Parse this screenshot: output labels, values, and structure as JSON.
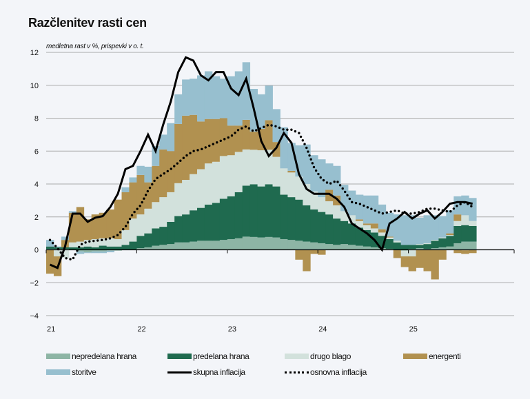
{
  "chart_data": {
    "type": "bar",
    "title": "Razčlenitev rasti cen",
    "subtitle": "medletna rast v %, prispevki v o. t.",
    "xlabel": "",
    "ylabel": "",
    "ylim": [
      -4,
      12
    ],
    "yticks": [
      -4,
      -2,
      0,
      2,
      4,
      6,
      8,
      10,
      12
    ],
    "yticklabels": [
      "−4",
      "−2",
      "0",
      "2",
      "4",
      "6",
      "8",
      "10",
      "12"
    ],
    "xticklabels": [
      "21",
      "22",
      "23",
      "24",
      "25"
    ],
    "grid": true,
    "legend_position": "bottom",
    "start": "2021-01",
    "months": 57,
    "series": [
      {
        "name": "nepredelana hrana",
        "kind": "bar",
        "color": "#8db5a5",
        "values": [
          0.05,
          0.05,
          0.05,
          0.0,
          -0.1,
          -0.15,
          -0.1,
          -0.1,
          -0.05,
          -0.05,
          0.0,
          0.0,
          0.1,
          0.15,
          0.25,
          0.3,
          0.35,
          0.45,
          0.45,
          0.5,
          0.55,
          0.55,
          0.55,
          0.6,
          0.65,
          0.7,
          0.8,
          0.78,
          0.75,
          0.78,
          0.75,
          0.65,
          0.6,
          0.55,
          0.5,
          0.45,
          0.4,
          0.35,
          0.3,
          0.35,
          0.3,
          0.25,
          0.2,
          0.15,
          0.1,
          0.05,
          0.0,
          -0.05,
          0.05,
          0.1,
          0.05,
          0.1,
          0.15,
          0.2,
          0.4,
          0.5,
          0.5
        ]
      },
      {
        "name": "predelana hrana",
        "kind": "bar",
        "color": "#1f6a4f",
        "values": [
          0.15,
          0.1,
          0.1,
          0.15,
          0.15,
          0.2,
          0.15,
          0.25,
          0.2,
          0.2,
          0.3,
          0.5,
          0.75,
          0.85,
          1.05,
          1.1,
          1.35,
          1.6,
          1.7,
          1.9,
          2.0,
          2.2,
          2.3,
          2.5,
          2.6,
          2.8,
          3.1,
          3.2,
          3.1,
          3.2,
          3.1,
          2.7,
          2.6,
          2.5,
          2.2,
          2.0,
          1.9,
          1.8,
          1.6,
          1.4,
          1.3,
          1.1,
          1.0,
          0.9,
          0.75,
          0.6,
          0.45,
          0.3,
          0.25,
          0.2,
          0.3,
          0.45,
          0.55,
          0.65,
          1.05,
          1.0,
          0.95
        ]
      },
      {
        "name": "drugo blago",
        "kind": "bar",
        "color": "#d2e1dc",
        "values": [
          0.0,
          -0.4,
          -0.5,
          0.3,
          0.35,
          0.4,
          0.5,
          0.45,
          0.5,
          0.45,
          0.9,
          1.4,
          1.3,
          1.5,
          1.6,
          1.8,
          1.8,
          2.0,
          2.1,
          2.2,
          2.35,
          2.5,
          2.5,
          2.6,
          2.5,
          2.45,
          2.2,
          2.1,
          2.2,
          2.1,
          1.8,
          1.6,
          1.5,
          1.4,
          1.3,
          1.1,
          0.9,
          0.8,
          0.8,
          0.6,
          0.5,
          0.4,
          0.3,
          0.25,
          0.2,
          0.1,
          0.1,
          -0.35,
          -0.4,
          0.05,
          0.05,
          0.05,
          0.05,
          0.05,
          0.3,
          0.6,
          0.3
        ]
      },
      {
        "name": "energenti",
        "kind": "bar",
        "color": "#b19150",
        "values": [
          -1.45,
          -1.2,
          0.45,
          1.8,
          2.1,
          1.25,
          1.5,
          1.55,
          1.75,
          2.4,
          2.3,
          2.2,
          2.4,
          1.6,
          2.2,
          2.9,
          2.5,
          3.6,
          3.9,
          3.6,
          2.9,
          2.7,
          2.6,
          2.3,
          1.8,
          1.6,
          1.8,
          1.1,
          1.3,
          1.8,
          0.9,
          0.0,
          0.1,
          -0.6,
          -1.3,
          -0.25,
          -0.3,
          0.7,
          0.6,
          0.0,
          0.0,
          0.1,
          0.1,
          0.3,
          0.2,
          0.05,
          -0.5,
          -0.65,
          -0.9,
          -1.1,
          -1.3,
          -1.8,
          -0.6,
          0.1,
          0.4,
          -0.05,
          0.0
        ]
      },
      {
        "name": "energenti (neg)",
        "kind": "bar-neg",
        "color": "#b19150",
        "values": [
          0,
          0,
          0,
          0,
          0,
          0,
          0,
          0,
          0,
          0,
          0,
          0,
          0,
          0,
          0,
          0,
          0,
          0,
          0,
          0,
          0,
          0,
          0,
          0,
          0,
          0,
          0,
          0,
          0,
          0,
          0,
          0,
          0,
          0,
          0,
          0,
          0,
          0,
          0,
          0,
          0,
          0,
          0,
          0,
          0,
          0,
          0,
          0,
          0,
          0,
          0,
          0,
          0,
          0,
          -0.2,
          -0.2,
          -0.2
        ]
      },
      {
        "name": "storitve",
        "kind": "bar",
        "color": "#97bfcf",
        "values": [
          0.4,
          0.05,
          0.2,
          0.1,
          -0.15,
          -0.05,
          -0.1,
          -0.1,
          -0.1,
          0.0,
          0.3,
          0.3,
          0.55,
          0.95,
          1.2,
          0.9,
          1.7,
          1.8,
          2.2,
          2.2,
          2.8,
          2.9,
          2.6,
          2.4,
          3.0,
          3.3,
          3.5,
          2.6,
          2.1,
          2.1,
          2.0,
          2.5,
          1.7,
          1.9,
          2.4,
          2.2,
          2.3,
          1.6,
          1.8,
          1.6,
          1.5,
          1.5,
          1.7,
          1.7,
          1.5,
          1.45,
          1.6,
          1.8,
          1.8,
          1.6,
          1.7,
          1.5,
          1.3,
          1.4,
          1.1,
          1.2,
          1.4
        ]
      },
      {
        "name": "skupna inflacija",
        "kind": "line",
        "color": "#000000",
        "values": [
          -0.9,
          -1.1,
          0.2,
          2.2,
          2.2,
          1.7,
          1.95,
          2.05,
          2.6,
          3.4,
          4.9,
          5.1,
          6.0,
          7.0,
          6.0,
          7.6,
          9.0,
          10.8,
          11.7,
          11.5,
          10.6,
          10.3,
          10.8,
          10.8,
          9.8,
          9.4,
          10.4,
          8.6,
          6.6,
          5.7,
          6.2,
          7.1,
          6.5,
          4.6,
          3.7,
          3.4,
          3.4,
          3.4,
          3.1,
          2.6,
          1.6,
          1.3,
          1.0,
          0.6,
          0.0,
          1.6,
          1.9,
          2.3,
          1.9,
          2.2,
          2.4,
          1.9,
          2.3,
          2.8,
          2.9,
          2.9,
          2.8
        ]
      },
      {
        "name": "osnovna inflacija",
        "kind": "line-dotted",
        "color": "#000000",
        "values": [
          0.6,
          0.1,
          -0.5,
          -0.6,
          0.3,
          0.5,
          0.55,
          0.6,
          0.7,
          0.9,
          1.4,
          2.2,
          2.7,
          3.6,
          4.3,
          4.6,
          4.9,
          5.3,
          5.7,
          6.0,
          6.1,
          6.3,
          6.5,
          6.7,
          6.9,
          7.3,
          7.5,
          7.2,
          7.4,
          7.6,
          7.5,
          7.3,
          7.3,
          7.1,
          6.2,
          5.0,
          4.3,
          4.0,
          4.2,
          3.6,
          2.9,
          2.8,
          2.6,
          2.4,
          2.2,
          2.3,
          2.4,
          2.2,
          2.2,
          2.3,
          2.5,
          2.5,
          2.4,
          2.3,
          2.7,
          2.9,
          2.6
        ]
      }
    ]
  },
  "legend": {
    "items": [
      {
        "label": "nepredelana hrana",
        "color": "#8db5a5",
        "kind": "box"
      },
      {
        "label": "predelana hrana",
        "color": "#1f6a4f",
        "kind": "box"
      },
      {
        "label": "drugo blago",
        "color": "#d2e1dc",
        "kind": "box"
      },
      {
        "label": "energenti",
        "color": "#b19150",
        "kind": "box"
      },
      {
        "label": "storitve",
        "color": "#97bfcf",
        "kind": "box"
      },
      {
        "label": "skupna inflacija",
        "color": "#000000",
        "kind": "line"
      },
      {
        "label": "osnovna inflacija",
        "color": "#000000",
        "kind": "dotted"
      }
    ]
  }
}
